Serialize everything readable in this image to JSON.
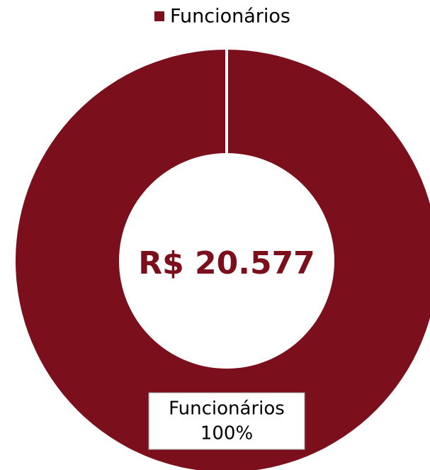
{
  "chart_data": {
    "type": "pie",
    "categories": [
      "Funcionários"
    ],
    "values": [
      100
    ],
    "value_labels": [
      "100%"
    ],
    "colors": [
      "#7b0f1c"
    ],
    "center_label": "R$ 20.577",
    "legend": "top"
  }
}
